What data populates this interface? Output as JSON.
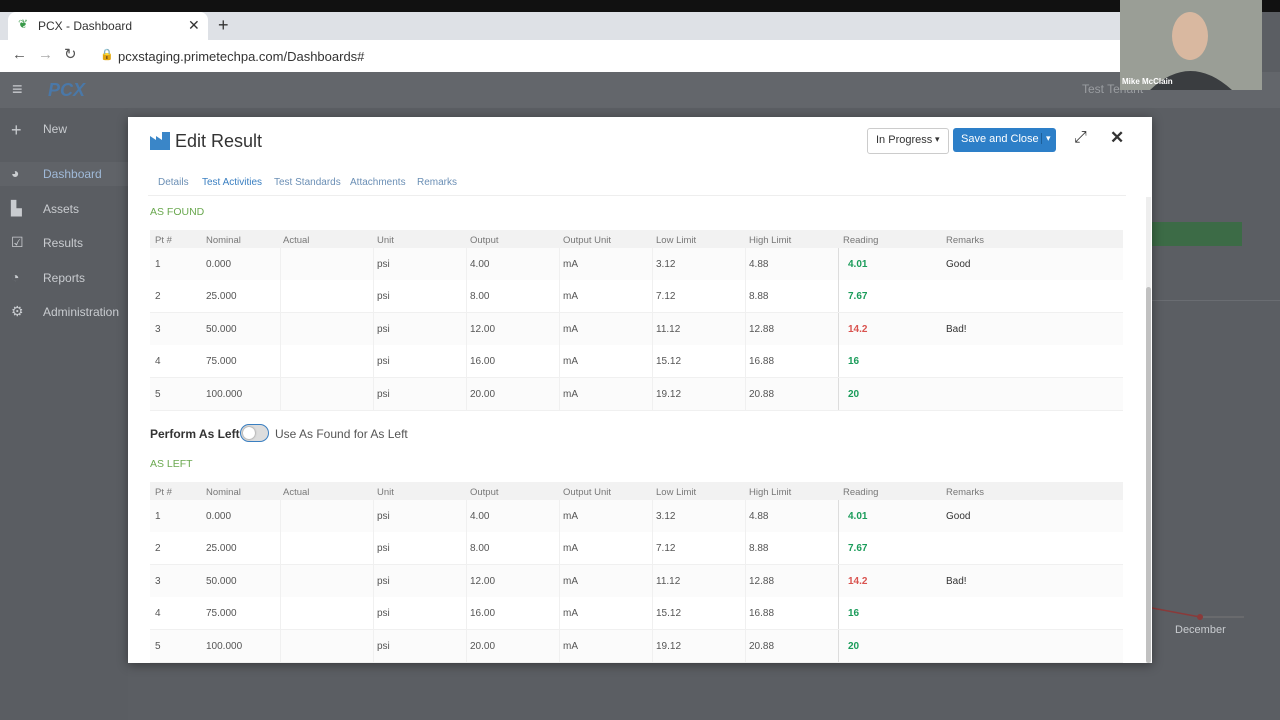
{
  "browser": {
    "tab_title": "PCX - Dashboard",
    "url": "pcxstaging.primetechpa.com/Dashboards#"
  },
  "video": {
    "name": "Mike McClain"
  },
  "app": {
    "logo": "PCX",
    "tenant": "Test Tenant",
    "nav": [
      "New",
      "Dashboard",
      "Assets",
      "Results",
      "Reports",
      "Administration"
    ],
    "background_label": "December"
  },
  "modal": {
    "title": "Edit Result",
    "status": "In Progress",
    "save_button": "Save and Close",
    "tabs": [
      "Details",
      "Test Activities",
      "Test Standards",
      "Attachments",
      "Remarks"
    ],
    "columns": [
      "Pt #",
      "Nominal",
      "Actual",
      "Unit",
      "Output",
      "Output Unit",
      "Low Limit",
      "High Limit",
      "Reading",
      "Remarks"
    ],
    "as_found": {
      "heading": "AS FOUND",
      "rows": [
        {
          "pt": 1,
          "nominal": "0.000",
          "unit": "psi",
          "output": "4.00",
          "output_unit": "mA",
          "low_limit": "3.12",
          "high_limit": "4.88",
          "reading": "4.01",
          "remarks": "Good"
        },
        {
          "pt": 2,
          "nominal": "25.000",
          "unit": "psi",
          "output": "8.00",
          "output_unit": "mA",
          "low_limit": "7.12",
          "high_limit": "8.88",
          "reading": "7.67"
        },
        {
          "pt": 3,
          "nominal": "50.000",
          "unit": "psi",
          "output": "12.00",
          "output_unit": "mA",
          "low_limit": "11.12",
          "high_limit": "12.88",
          "reading": "14.2",
          "remarks": "Bad!"
        },
        {
          "pt": 4,
          "nominal": "75.000",
          "unit": "psi",
          "output": "16.00",
          "output_unit": "mA",
          "low_limit": "15.12",
          "high_limit": "16.88",
          "reading": "16"
        },
        {
          "pt": 5,
          "nominal": "100.000",
          "unit": "psi",
          "output": "20.00",
          "output_unit": "mA",
          "low_limit": "19.12",
          "high_limit": "20.88",
          "reading": "20"
        }
      ]
    },
    "perform_as_left": "Perform As Left",
    "toggle_label": "Use As Found for As Left",
    "as_left": {
      "heading": "AS LEFT",
      "rows": [
        {
          "pt": 1,
          "nominal": "0.000",
          "unit": "psi",
          "output": "4.00",
          "output_unit": "mA",
          "low_limit": "3.12",
          "high_limit": "4.88",
          "reading": "4.01",
          "remarks": "Good"
        },
        {
          "pt": 2,
          "nominal": "25.000",
          "unit": "psi",
          "output": "8.00",
          "output_unit": "mA",
          "low_limit": "7.12",
          "high_limit": "8.88",
          "reading": "7.67"
        },
        {
          "pt": 3,
          "nominal": "50.000",
          "unit": "psi",
          "output": "12.00",
          "output_unit": "mA",
          "low_limit": "11.12",
          "high_limit": "12.88",
          "reading": "14.2",
          "remarks": "Bad!"
        },
        {
          "pt": 4,
          "nominal": "75.000",
          "unit": "psi",
          "output": "16.00",
          "output_unit": "mA",
          "low_limit": "15.12",
          "high_limit": "16.88",
          "reading": "16"
        },
        {
          "pt": 5,
          "nominal": "100.000",
          "unit": "psi",
          "output": "20.00",
          "output_unit": "mA",
          "low_limit": "19.12",
          "high_limit": "20.88",
          "reading": "20"
        }
      ]
    }
  }
}
